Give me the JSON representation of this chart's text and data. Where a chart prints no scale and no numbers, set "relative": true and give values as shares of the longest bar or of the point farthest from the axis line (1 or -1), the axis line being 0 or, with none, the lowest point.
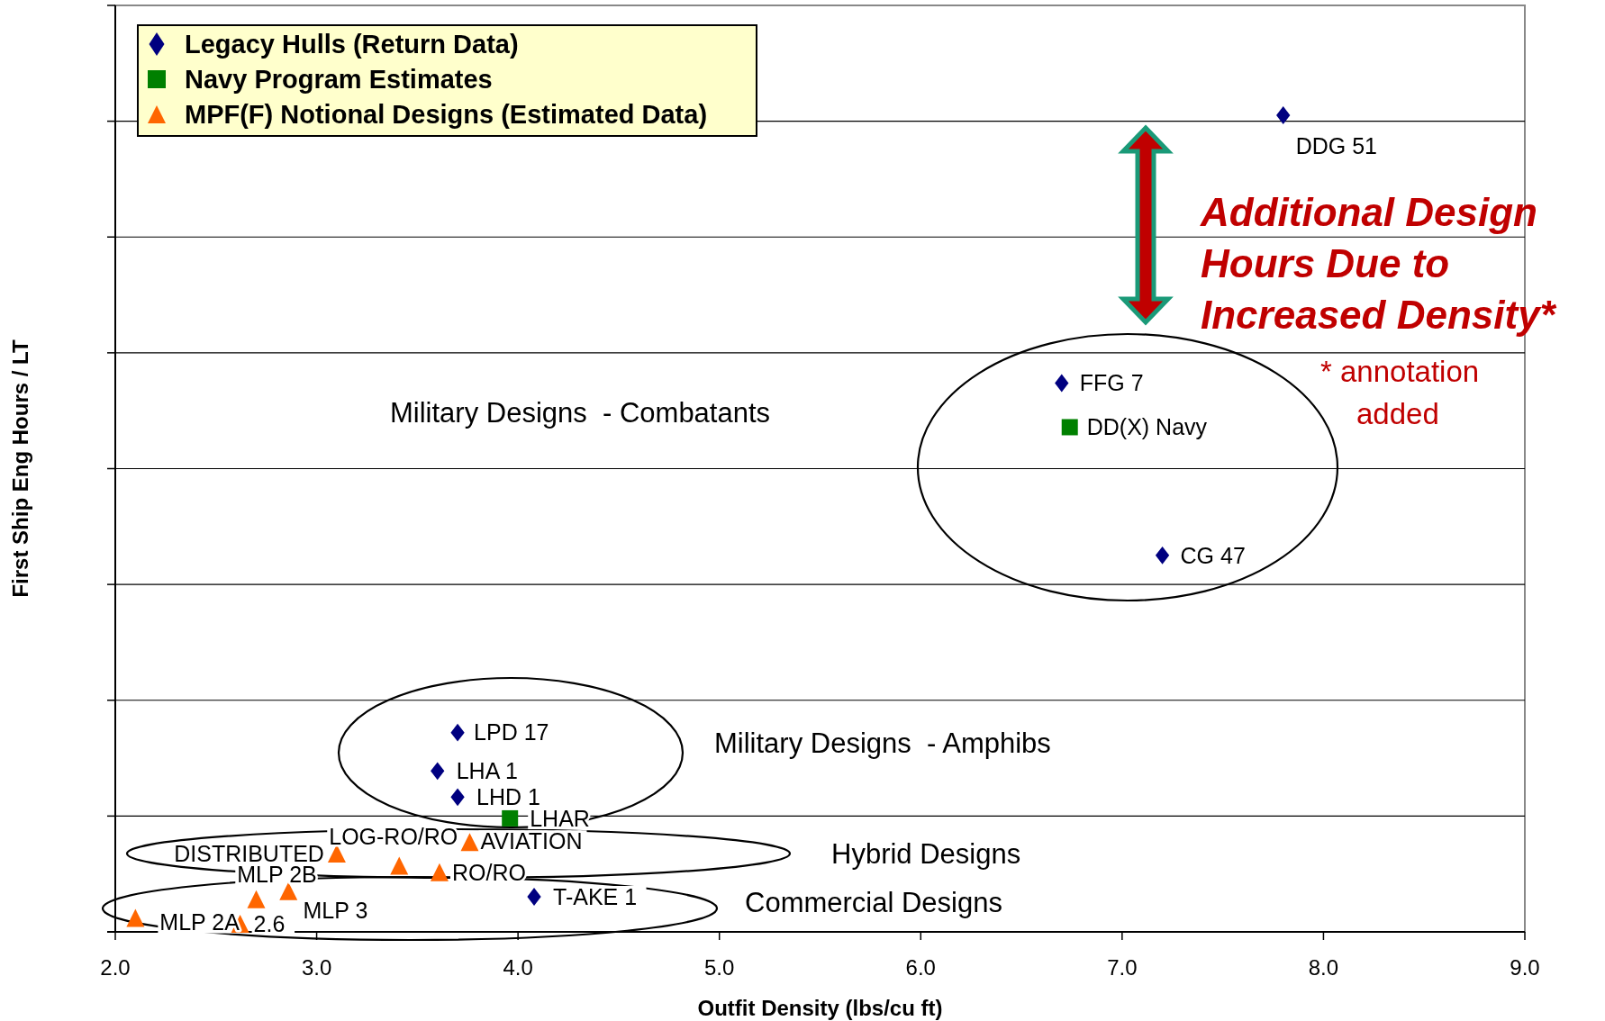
{
  "chart_data": {
    "type": "scatter",
    "xlabel": "Outfit Density (lbs/cu ft)",
    "ylabel": "First Ship Eng Hours / LT",
    "relative": true,
    "xlim": [
      2,
      9
    ],
    "xticks": [
      {
        "value": 2,
        "label": "2.0"
      },
      {
        "value": 3,
        "label": "3.0"
      },
      {
        "value": 4,
        "label": "4.0"
      },
      {
        "value": 5,
        "label": "5.0"
      },
      {
        "value": 6,
        "label": "6.0"
      },
      {
        "value": 7,
        "label": "7.0"
      },
      {
        "value": 8,
        "label": "8.0"
      },
      {
        "value": 9,
        "label": "9.0"
      }
    ],
    "grid": "y",
    "legend": "top left",
    "series": [
      {
        "name": "Legacy Hulls (Return Data)",
        "color": "#000080",
        "marker": "diamond",
        "x": [
          7.8,
          6.7,
          7.2,
          3.7,
          3.6,
          3.7,
          4.08
        ],
        "values": [
          1,
          0.672,
          0.461,
          0.244,
          0.197,
          0.165,
          0.043
        ]
      },
      {
        "name": "Navy Program Estimates",
        "color": "#008000",
        "marker": "square",
        "x": [
          6.74,
          3.96
        ],
        "values": [
          0.618,
          0.139
        ]
      },
      {
        "name": "MPF(F) Notional Designs (Estimated Data)",
        "color": "#ff6600",
        "marker": "triangle",
        "x": [
          2.1,
          2.62,
          2.7,
          2.86,
          3.1,
          3.41,
          3.61,
          3.76
        ],
        "values": [
          0.017,
          0.01,
          0.04,
          0.05,
          0.096,
          0.081,
          0.073,
          0.11
        ]
      }
    ],
    "annotations": [
      {
        "text": "DDG 51",
        "x": 7.8,
        "y": 1
      },
      {
        "text": "FFG 7",
        "x": 6.7,
        "y": 0.672
      },
      {
        "text": "DD(X) Navy",
        "x": 6.74,
        "y": 0.618
      },
      {
        "text": "CG 47",
        "x": 7.2,
        "y": 0.461
      },
      {
        "text": "LPD 17",
        "x": 3.7,
        "y": 0.244
      },
      {
        "text": "LHA 1",
        "x": 3.6,
        "y": 0.197
      },
      {
        "text": "LHD 1",
        "x": 3.7,
        "y": 0.165
      },
      {
        "text": "LHAR",
        "x": 3.96,
        "y": 0.139
      },
      {
        "text": "T-AKE 1",
        "x": 4.08,
        "y": 0.043
      },
      {
        "text": "MLP 2A",
        "x": 2.1,
        "y": 0.017
      },
      {
        "text": "2.6",
        "x": 2.62,
        "y": 0.01
      },
      {
        "text": "MLP 3",
        "x": 2.7,
        "y": 0.04
      },
      {
        "text": "MLP 2B",
        "x": 2.86,
        "y": 0.05
      },
      {
        "text": "DISTRIBUTED",
        "x": 3.1,
        "y": 0.096
      },
      {
        "text": "LOG-RO/RO",
        "x": 3.41,
        "y": 0.081
      },
      {
        "text": "RO/RO",
        "x": 3.61,
        "y": 0.073
      },
      {
        "text": "AVIATION",
        "x": 3.76,
        "y": 0.11
      },
      "Military Designs  - Combatants",
      "Military Designs  - Amphibs",
      "Hybrid Designs",
      "Commercial Designs",
      "Additional Design\nHours Due to\nIncreased Density*",
      "* annotation\nadded"
    ]
  }
}
